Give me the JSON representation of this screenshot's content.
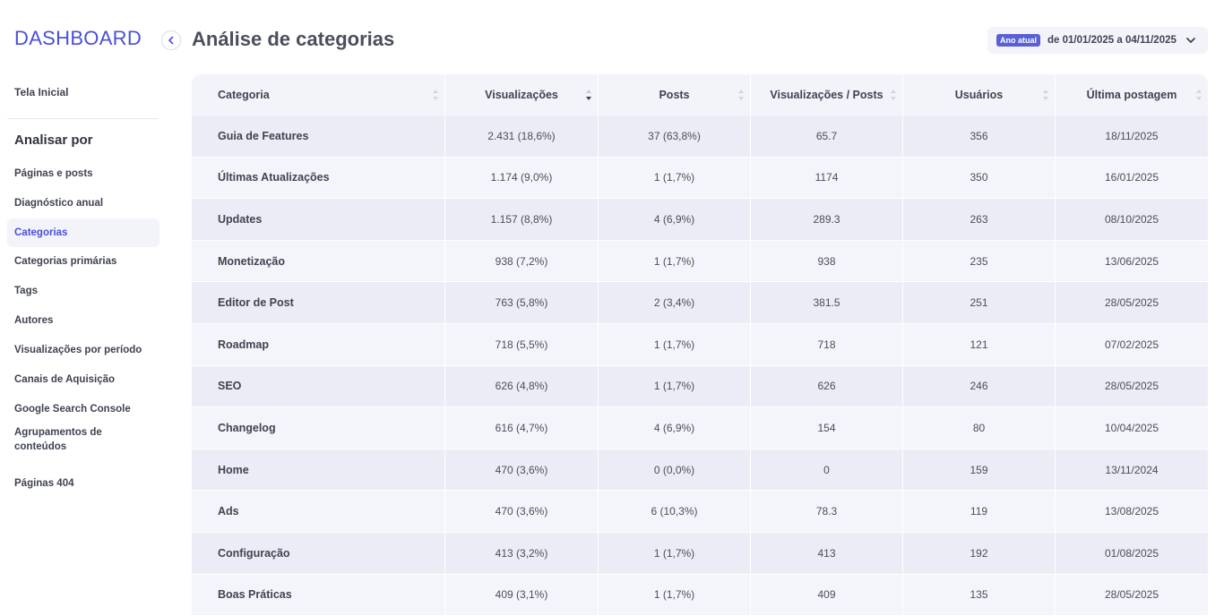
{
  "sidebar": {
    "logo": "DASHBOARD",
    "home": "Tela Inicial",
    "section_title": "Analisar por",
    "items": [
      {
        "label": "Páginas e posts"
      },
      {
        "label": "Diagnóstico anual"
      },
      {
        "label": "Categorias",
        "active": true
      },
      {
        "label": "Categorias primárias"
      },
      {
        "label": "Tags"
      },
      {
        "label": "Autores"
      },
      {
        "label": "Visualizações por período"
      },
      {
        "label": "Canais de Aquisição"
      },
      {
        "label": "Google Search Console"
      },
      {
        "label": "Agrupamentos de conteúdos"
      },
      {
        "label": "Páginas 404"
      }
    ]
  },
  "header": {
    "title": "Análise de categorias",
    "date_badge": "Ano atual",
    "date_range": "de 01/01/2025 a 04/11/2025"
  },
  "table": {
    "columns": [
      "Categoria",
      "Visualizações",
      "Posts",
      "Visualizações / Posts",
      "Usuários",
      "Última postagem"
    ],
    "sorted_column": "Visualizações",
    "sort_direction": "desc",
    "rows": [
      [
        "Guia de Features",
        "2.431 (18,6%)",
        "37 (63,8%)",
        "65.7",
        "356",
        "18/11/2025"
      ],
      [
        "Últimas Atualizações",
        "1.174 (9,0%)",
        "1 (1,7%)",
        "1174",
        "350",
        "16/01/2025"
      ],
      [
        "Updates",
        "1.157 (8,8%)",
        "4 (6,9%)",
        "289.3",
        "263",
        "08/10/2025"
      ],
      [
        "Monetização",
        "938 (7,2%)",
        "1 (1,7%)",
        "938",
        "235",
        "13/06/2025"
      ],
      [
        "Editor de Post",
        "763 (5,8%)",
        "2 (3,4%)",
        "381.5",
        "251",
        "28/05/2025"
      ],
      [
        "Roadmap",
        "718 (5,5%)",
        "1 (1,7%)",
        "718",
        "121",
        "07/02/2025"
      ],
      [
        "SEO",
        "626 (4,8%)",
        "1 (1,7%)",
        "626",
        "246",
        "28/05/2025"
      ],
      [
        "Changelog",
        "616 (4,7%)",
        "4 (6,9%)",
        "154",
        "80",
        "10/04/2025"
      ],
      [
        "Home",
        "470 (3,6%)",
        "0 (0,0%)",
        "0",
        "159",
        "13/11/2024"
      ],
      [
        "Ads",
        "470 (3,6%)",
        "6 (10,3%)",
        "78.3",
        "119",
        "13/08/2025"
      ],
      [
        "Configuração",
        "413 (3,2%)",
        "1 (1,7%)",
        "413",
        "192",
        "01/08/2025"
      ],
      [
        "Boas Práticas",
        "409 (3,1%)",
        "1 (1,7%)",
        "409",
        "135",
        "28/05/2025"
      ]
    ]
  },
  "colors": {
    "accent": "#4a4fd8",
    "header_bg": "#f3f4fa",
    "row_odd": "#ebecf5",
    "row_even": "#f4f5fa"
  }
}
